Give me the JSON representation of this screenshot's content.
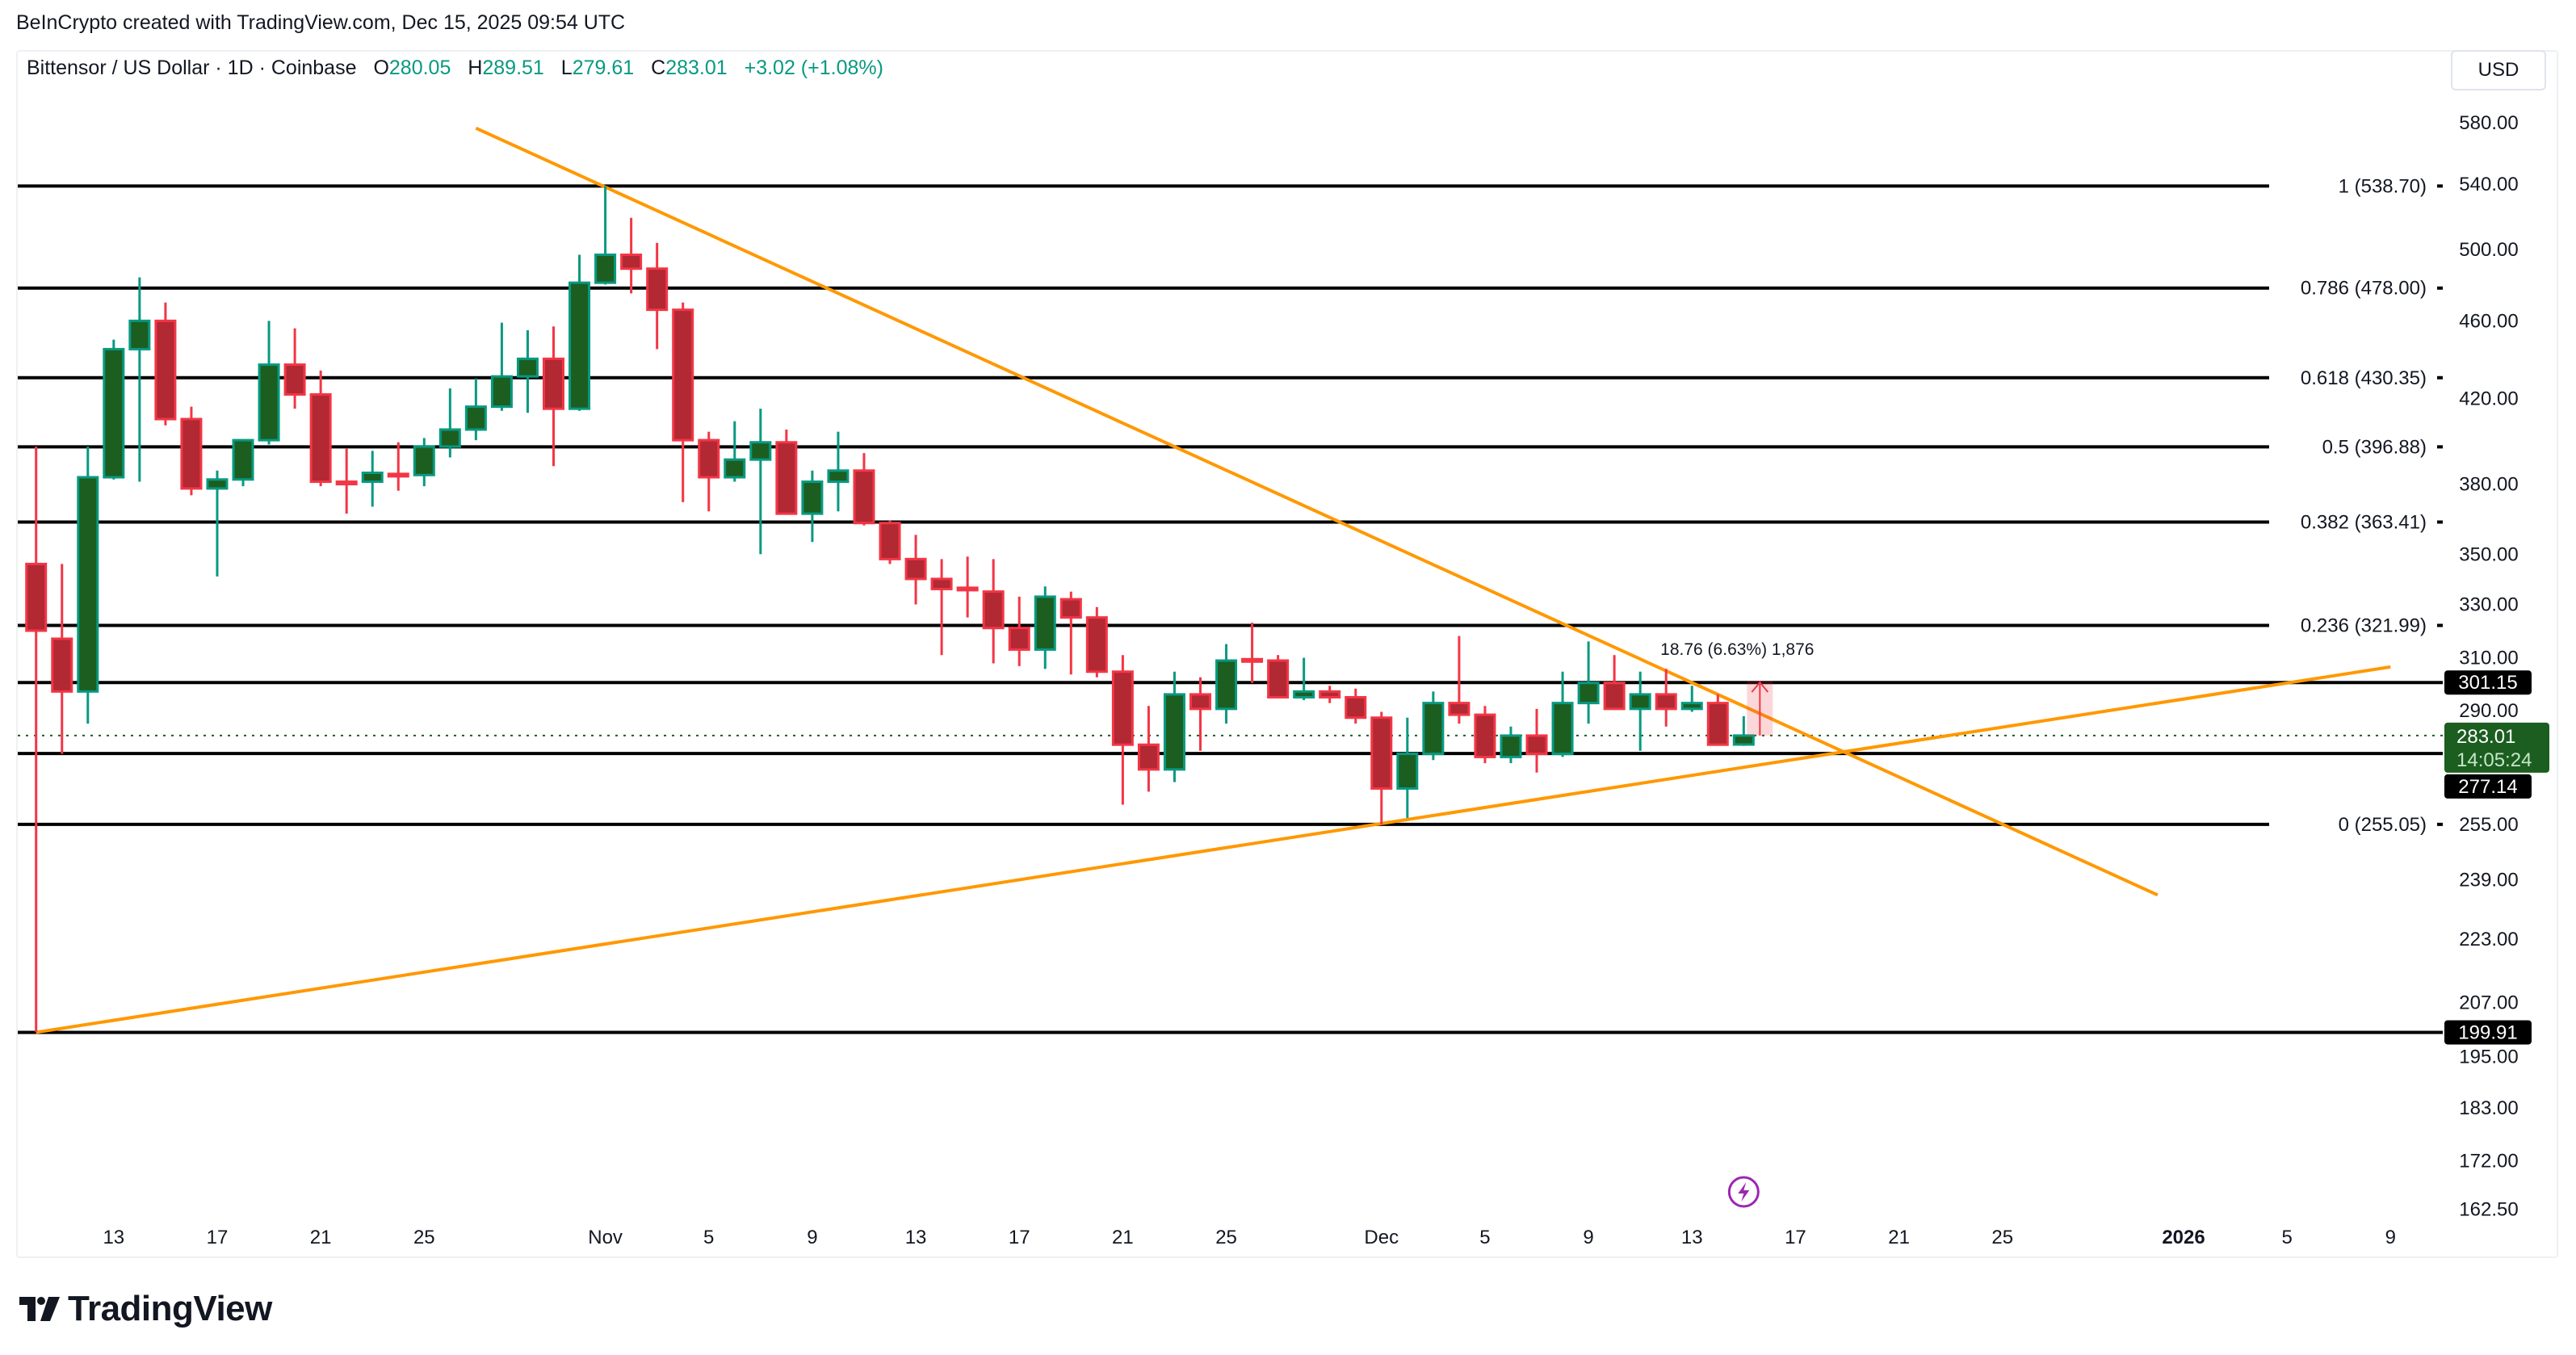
{
  "credit": "BeInCrypto created with TradingView.com, Dec 15, 2025 09:54 UTC",
  "legend": {
    "symbol": "Bittensor / US Dollar · 1D · Coinbase",
    "o_label": "O",
    "o": "280.05",
    "h_label": "H",
    "h": "289.51",
    "l_label": "L",
    "l": "279.61",
    "c_label": "C",
    "c": "283.01",
    "change": "+3.02 (+1.08%)"
  },
  "currency_button": "USD",
  "brand": "TradingView",
  "colors": {
    "up_body": "#1b5e20",
    "up_border": "#089981",
    "down_body": "#b22833",
    "down_border": "#f23645",
    "trendline": "#ff9800",
    "level_line": "#000000",
    "last_price": "#1b5e20",
    "event_marker": "#9c27b0"
  },
  "chart_data": {
    "type": "candlestick",
    "y_scale": "log",
    "ylim": [
      162.5,
      600
    ],
    "grid": false,
    "y_ticks": [
      "580.00",
      "540.00",
      "500.00",
      "460.00",
      "420.00",
      "380.00",
      "350.00",
      "330.00",
      "310.00",
      "290.00",
      "255.00",
      "239.00",
      "223.00",
      "207.00",
      "195.00",
      "183.00",
      "172.00",
      "162.50"
    ],
    "x_ticks": [
      {
        "date": "2025-10-13",
        "label": "13"
      },
      {
        "date": "2025-10-17",
        "label": "17"
      },
      {
        "date": "2025-10-21",
        "label": "21"
      },
      {
        "date": "2025-10-25",
        "label": "25"
      },
      {
        "date": "2025-11-01",
        "label": "Nov"
      },
      {
        "date": "2025-11-05",
        "label": "5"
      },
      {
        "date": "2025-11-09",
        "label": "9"
      },
      {
        "date": "2025-11-13",
        "label": "13"
      },
      {
        "date": "2025-11-17",
        "label": "17"
      },
      {
        "date": "2025-11-21",
        "label": "21"
      },
      {
        "date": "2025-11-25",
        "label": "25"
      },
      {
        "date": "2025-12-01",
        "label": "Dec"
      },
      {
        "date": "2025-12-05",
        "label": "5"
      },
      {
        "date": "2025-12-09",
        "label": "9"
      },
      {
        "date": "2025-12-13",
        "label": "13"
      },
      {
        "date": "2025-12-17",
        "label": "17"
      },
      {
        "date": "2025-12-21",
        "label": "21"
      },
      {
        "date": "2025-12-25",
        "label": "25"
      },
      {
        "date": "2026-01-01",
        "label": "2026",
        "bold": true
      },
      {
        "date": "2026-01-05",
        "label": "5"
      },
      {
        "date": "2026-01-09",
        "label": "9"
      }
    ],
    "candles": [
      [
        "2025-10-10",
        346,
        397,
        200,
        320
      ],
      [
        "2025-10-11",
        317,
        346,
        277,
        298
      ],
      [
        "2025-10-12",
        298,
        397,
        287,
        383
      ],
      [
        "2025-10-13",
        383,
        450,
        382,
        445
      ],
      [
        "2025-10-14",
        445,
        484,
        381,
        460
      ],
      [
        "2025-10-15",
        460,
        470,
        407,
        410
      ],
      [
        "2025-10-16",
        410,
        416,
        375,
        378
      ],
      [
        "2025-10-17",
        378,
        386,
        341,
        382
      ],
      [
        "2025-10-18",
        382,
        400,
        379,
        400
      ],
      [
        "2025-10-19",
        400,
        460,
        398,
        437
      ],
      [
        "2025-10-20",
        437,
        456,
        415,
        422
      ],
      [
        "2025-10-21",
        422,
        434,
        379,
        381
      ],
      [
        "2025-10-22",
        381,
        396,
        367,
        380
      ],
      [
        "2025-10-23",
        381,
        395,
        370,
        385
      ],
      [
        "2025-10-24",
        384.5,
        399,
        377,
        384
      ],
      [
        "2025-10-25",
        384,
        401,
        379,
        397
      ],
      [
        "2025-10-26",
        397,
        425,
        392,
        405
      ],
      [
        "2025-10-27",
        405,
        430,
        400,
        416
      ],
      [
        "2025-10-28",
        416,
        459,
        414,
        431
      ],
      [
        "2025-10-29",
        431,
        455,
        413,
        440
      ],
      [
        "2025-10-30",
        440,
        457,
        388,
        415
      ],
      [
        "2025-10-31",
        415,
        497,
        414,
        481
      ],
      [
        "2025-11-01",
        481,
        538.7,
        480,
        497
      ],
      [
        "2025-11-02",
        497,
        519,
        475,
        489
      ],
      [
        "2025-11-03",
        489,
        504,
        445,
        466
      ],
      [
        "2025-11-04",
        466,
        470,
        372,
        400
      ],
      [
        "2025-11-05",
        400,
        404,
        368,
        383
      ],
      [
        "2025-11-06",
        383,
        409,
        381,
        391
      ],
      [
        "2025-11-07",
        391,
        415,
        350,
        399
      ],
      [
        "2025-11-08",
        399,
        405,
        367,
        367
      ],
      [
        "2025-11-09",
        367,
        386,
        355,
        381
      ],
      [
        "2025-11-10",
        381,
        404,
        368,
        386
      ],
      [
        "2025-11-11",
        386,
        394,
        362,
        363
      ],
      [
        "2025-11-12",
        363,
        364,
        346,
        348
      ],
      [
        "2025-11-13",
        348,
        358,
        330,
        340
      ],
      [
        "2025-11-14",
        340,
        348,
        311,
        336
      ],
      [
        "2025-11-15",
        336.5,
        349,
        325,
        336
      ],
      [
        "2025-11-16",
        335,
        348,
        308,
        321
      ],
      [
        "2025-11-17",
        321,
        333,
        307,
        313
      ],
      [
        "2025-11-18",
        313,
        337,
        306,
        333
      ],
      [
        "2025-11-19",
        332,
        335,
        304,
        325
      ],
      [
        "2025-11-20",
        325,
        329,
        303,
        305
      ],
      [
        "2025-11-21",
        305,
        311,
        261,
        280
      ],
      [
        "2025-11-22",
        280,
        293,
        265,
        272
      ],
      [
        "2025-11-23",
        272,
        305,
        268,
        297
      ],
      [
        "2025-11-24",
        297,
        303,
        278,
        292
      ],
      [
        "2025-11-25",
        292,
        315,
        287,
        309
      ],
      [
        "2025-11-26",
        309.5,
        323,
        301,
        309
      ],
      [
        "2025-11-27",
        309,
        311,
        296,
        296
      ],
      [
        "2025-11-28",
        296,
        310,
        295,
        298
      ],
      [
        "2025-11-29",
        298,
        300,
        294,
        296
      ],
      [
        "2025-11-30",
        296,
        299,
        287,
        289
      ],
      [
        "2025-12-01",
        289,
        291,
        255,
        266
      ],
      [
        "2025-12-02",
        266,
        289,
        257,
        277
      ],
      [
        "2025-12-03",
        277,
        298,
        275,
        294
      ],
      [
        "2025-12-04",
        294,
        318,
        287,
        290
      ],
      [
        "2025-12-05",
        290,
        293,
        274,
        276
      ],
      [
        "2025-12-06",
        276,
        286,
        274,
        283
      ],
      [
        "2025-12-07",
        283,
        292,
        271,
        277
      ],
      [
        "2025-12-08",
        277,
        305,
        276,
        294
      ],
      [
        "2025-12-09",
        294,
        316,
        287,
        301
      ],
      [
        "2025-12-10",
        301,
        311,
        292,
        292
      ],
      [
        "2025-12-11",
        292,
        305,
        278,
        297
      ],
      [
        "2025-12-12",
        297,
        306,
        286,
        292
      ],
      [
        "2025-12-13",
        292,
        300,
        291,
        294
      ],
      [
        "2025-12-14",
        294,
        297,
        281,
        280
      ],
      [
        "2025-12-15",
        280.05,
        289.51,
        279.61,
        283.01
      ]
    ],
    "fib_levels": [
      {
        "label": "1 (538.70)",
        "price": 538.7
      },
      {
        "label": "0.786 (478.00)",
        "price": 478.0
      },
      {
        "label": "0.618 (430.35)",
        "price": 430.35
      },
      {
        "label": "0.5 (396.88)",
        "price": 396.88
      },
      {
        "label": "0.382 (363.41)",
        "price": 363.41
      },
      {
        "label": "0.236 (321.99)",
        "price": 321.99
      },
      {
        "label": "0 (255.05)",
        "price": 255.05
      }
    ],
    "horizontal_lines": [
      {
        "price": 301.15,
        "tag": "301.15"
      },
      {
        "price": 277.14,
        "tag": "277.14"
      },
      {
        "price": 199.91,
        "tag": "199.91"
      }
    ],
    "last_price": {
      "price": 283.01,
      "tag": "283.01",
      "countdown": "14:05:24"
    },
    "trendlines": [
      {
        "from": [
          "2025-10-27",
          576.5
        ],
        "to": [
          "2025-12-31",
          234.8
        ]
      },
      {
        "from": [
          "2025-10-10",
          199.91
        ],
        "to": [
          "2026-01-09",
          306.7
        ]
      }
    ],
    "price_range": {
      "from": 283.01,
      "to": 301.77,
      "date": "2025-12-15",
      "label": "18.76 (6.63%) 1,876"
    },
    "event_marker": {
      "date": "2025-12-15",
      "icon": "lightning-icon"
    }
  }
}
